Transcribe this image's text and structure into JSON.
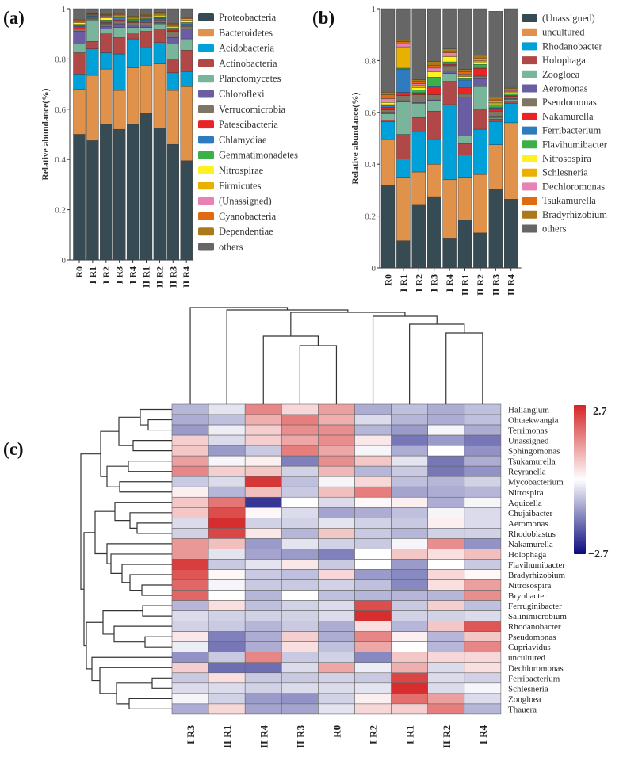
{
  "chart_data": [
    {
      "panel": "(a)",
      "type": "bar",
      "stacked": true,
      "ylabel": "Relative abundance(%)",
      "ylim": [
        0,
        1
      ],
      "yticks": [
        "0",
        "0.2",
        "0.4",
        "0.6",
        "0.8",
        "1"
      ],
      "categories": [
        "R0",
        "I R1",
        "I R2",
        "I R3",
        "I R4",
        "II R1",
        "II R2",
        "II R3",
        "II R4"
      ],
      "legend_position": "right",
      "series": [
        {
          "name": "Proteobacteria",
          "color": "#364b53",
          "values": [
            0.5,
            0.475,
            0.54,
            0.52,
            0.54,
            0.585,
            0.525,
            0.46,
            0.395
          ]
        },
        {
          "name": "Bacteroidetes",
          "color": "#e0914a",
          "values": [
            0.18,
            0.26,
            0.22,
            0.155,
            0.225,
            0.19,
            0.255,
            0.215,
            0.295
          ]
        },
        {
          "name": "Acidobacteria",
          "color": "#00a0d8",
          "values": [
            0.06,
            0.105,
            0.065,
            0.145,
            0.115,
            0.07,
            0.085,
            0.07,
            0.06
          ]
        },
        {
          "name": "Actinobacteria",
          "color": "#b04848",
          "values": [
            0.085,
            0.03,
            0.075,
            0.065,
            0.02,
            0.065,
            0.055,
            0.055,
            0.085
          ]
        },
        {
          "name": "Planctomycetes",
          "color": "#78b59a",
          "values": [
            0.035,
            0.085,
            0.02,
            0.04,
            0.025,
            0.015,
            0.02,
            0.06,
            0.045
          ]
        },
        {
          "name": "Chloroflexi",
          "color": "#6a5da3",
          "values": [
            0.05,
            0.005,
            0.01,
            0.015,
            0.01,
            0.01,
            0.005,
            0.025,
            0.04
          ]
        },
        {
          "name": "Verrucomicrobia",
          "color": "#7e7565",
          "values": [
            0.01,
            0.005,
            0.01,
            0.01,
            0.01,
            0.01,
            0.01,
            0.025,
            0.01
          ]
        },
        {
          "name": "Patescibacteria",
          "color": "#e82424",
          "values": [
            0.008,
            0.003,
            0.005,
            0.005,
            0.004,
            0.008,
            0.005,
            0.005,
            0.005
          ]
        },
        {
          "name": "Chlamydiae",
          "color": "#2f7bbf",
          "values": [
            0.004,
            0.003,
            0.005,
            0.008,
            0.004,
            0.005,
            0.004,
            0.004,
            0.005
          ]
        },
        {
          "name": "Gemmatimonadetes",
          "color": "#3bb04a",
          "values": [
            0.006,
            0.002,
            0.005,
            0.004,
            0.005,
            0.003,
            0.004,
            0.005,
            0.005
          ]
        },
        {
          "name": "Nitrospirae",
          "color": "#fff022",
          "values": [
            0.006,
            0.002,
            0.008,
            0.004,
            0.003,
            0.003,
            0.004,
            0.004,
            0.006
          ]
        },
        {
          "name": "Firmicutes",
          "color": "#e8b000",
          "values": [
            0.004,
            0.002,
            0.006,
            0.003,
            0.003,
            0.003,
            0.005,
            0.004,
            0.004
          ]
        },
        {
          "name": "(Unassigned)",
          "color": "#e882b4",
          "values": [
            0.004,
            0.002,
            0.003,
            0.002,
            0.002,
            0.003,
            0.003,
            0.003,
            0.005
          ]
        },
        {
          "name": "Cyanobacteria",
          "color": "#e06a10",
          "values": [
            0.003,
            0.002,
            0.003,
            0.003,
            0.002,
            0.003,
            0.003,
            0.004,
            0.003
          ]
        },
        {
          "name": "Dependentiae",
          "color": "#a87a1a",
          "values": [
            0.003,
            0.002,
            0.003,
            0.003,
            0.003,
            0.004,
            0.003,
            0.003,
            0.004
          ]
        },
        {
          "name": "others",
          "color": "#666666",
          "values": [
            0.042,
            0.017,
            0.022,
            0.018,
            0.029,
            0.023,
            0.014,
            0.058,
            0.033
          ]
        }
      ]
    },
    {
      "panel": "(b)",
      "type": "bar",
      "stacked": true,
      "ylabel": "Relative abundance(%)",
      "ylim": [
        0,
        1
      ],
      "yticks": [
        "0",
        "0.2",
        "0.4",
        "0.6",
        "0.8",
        "1"
      ],
      "categories": [
        "R0",
        "I R1",
        "I R2",
        "I R3",
        "I R4",
        "II R1",
        "II R2",
        "II R3",
        "II R4"
      ],
      "legend_position": "right",
      "series": [
        {
          "name": "(Unassigned)",
          "color": "#364b53",
          "values": [
            0.32,
            0.105,
            0.245,
            0.275,
            0.115,
            0.185,
            0.135,
            0.305,
            0.265
          ]
        },
        {
          "name": "uncultured",
          "color": "#e0914a",
          "values": [
            0.175,
            0.245,
            0.125,
            0.125,
            0.225,
            0.165,
            0.225,
            0.17,
            0.295
          ]
        },
        {
          "name": "Rhodanobacter",
          "color": "#00a0d8",
          "values": [
            0.07,
            0.07,
            0.155,
            0.095,
            0.29,
            0.085,
            0.175,
            0.09,
            0.075
          ]
        },
        {
          "name": "Holophaga",
          "color": "#b04848",
          "values": [
            0.005,
            0.095,
            0.055,
            0.11,
            0.09,
            0.045,
            0.075,
            0.01,
            0.01
          ]
        },
        {
          "name": "Zoogloea",
          "color": "#78b59a",
          "values": [
            0.025,
            0.125,
            0.055,
            0.04,
            0.03,
            0.03,
            0.09,
            0.005,
            0.005
          ]
        },
        {
          "name": "Aeromonas",
          "color": "#6a5da3",
          "values": [
            0.005,
            0.005,
            0.003,
            0.003,
            0.01,
            0.15,
            0.03,
            0.005,
            0.003
          ]
        },
        {
          "name": "Pseudomonas",
          "color": "#7e7565",
          "values": [
            0.01,
            0.02,
            0.03,
            0.02,
            0.02,
            0.01,
            0.01,
            0.02,
            0.005
          ]
        },
        {
          "name": "Nakamurella",
          "color": "#e82424",
          "values": [
            0.01,
            0.012,
            0.005,
            0.03,
            0.005,
            0.025,
            0.03,
            0.01,
            0.005
          ]
        },
        {
          "name": "Ferribacterium",
          "color": "#2f7bbf",
          "values": [
            0.005,
            0.09,
            0.003,
            0.003,
            0.005,
            0.03,
            0.005,
            0.003,
            0.003
          ]
        },
        {
          "name": "Flavihumibacter",
          "color": "#3bb04a",
          "values": [
            0.005,
            0.003,
            0.01,
            0.035,
            0.005,
            0.005,
            0.01,
            0.01,
            0.005
          ]
        },
        {
          "name": "Nitrosospira",
          "color": "#fff022",
          "values": [
            0.008,
            0.003,
            0.01,
            0.02,
            0.02,
            0.008,
            0.01,
            0.005,
            0.005
          ]
        },
        {
          "name": "Schlesneria",
          "color": "#e8b000",
          "values": [
            0.005,
            0.08,
            0.01,
            0.005,
            0.005,
            0.005,
            0.005,
            0.005,
            0.005
          ]
        },
        {
          "name": "Dechloromonas",
          "color": "#e882b4",
          "values": [
            0.01,
            0.012,
            0.005,
            0.01,
            0.01,
            0.005,
            0.005,
            0.005,
            0.003
          ]
        },
        {
          "name": "Tsukamurella",
          "color": "#e06a10",
          "values": [
            0.015,
            0.008,
            0.01,
            0.01,
            0.005,
            0.008,
            0.005,
            0.005,
            0.008
          ]
        },
        {
          "name": "Bradyrhizobium",
          "color": "#a87a1a",
          "values": [
            0.01,
            0.005,
            0.005,
            0.015,
            0.01,
            0.01,
            0.01,
            0.01,
            0.005
          ]
        },
        {
          "name": "others",
          "color": "#666666",
          "values": [
            0.322,
            0.122,
            0.274,
            0.204,
            0.155,
            0.234,
            0.18,
            0.332,
            0.303
          ]
        }
      ]
    },
    {
      "panel": "(c)",
      "type": "heatmap",
      "columns": [
        "I R3",
        "II R1",
        "II R4",
        "II R3",
        "R0",
        "I R2",
        "I R1",
        "II R2",
        "I R4"
      ],
      "rows": [
        "Haliangium",
        "Ohtaekwangia",
        "Terrimonas",
        "Unassigned",
        "Sphingomonas",
        "Tsukamurella",
        "Reyranella",
        "Mycobacterium",
        "Nitrospira",
        "Aquicella",
        "Chujaibacter",
        "Aeromonas",
        "Rhodoblastus",
        "Nakamurella",
        "Holophaga",
        "Flavihumibacter",
        "Bradyrhizobium",
        "Nitrosospira",
        "Bryobacter",
        "Ferruginibacter",
        "Salinimicrobium",
        "Rhodanobacter",
        "Pseudomonas",
        "Cupriavidus",
        "uncultured",
        "Dechloromonas",
        "Ferribacterium",
        "Schlesneria",
        "Zoogloea",
        "Thauera"
      ],
      "values": [
        [
          -0.8,
          -0.3,
          1.5,
          0.5,
          1.2,
          -0.9,
          -0.7,
          -0.9,
          -0.7
        ],
        [
          -0.9,
          -0.7,
          1.0,
          1.6,
          1.0,
          -0.4,
          -0.8,
          -0.9,
          -0.7
        ],
        [
          -1.1,
          -0.2,
          0.6,
          1.4,
          1.4,
          -0.8,
          -1.1,
          -0.1,
          -0.9
        ],
        [
          0.6,
          -0.4,
          0.6,
          1.1,
          1.4,
          0.3,
          -1.5,
          -1.1,
          -1.5
        ],
        [
          0.7,
          -1.1,
          -0.6,
          1.6,
          1.1,
          -0.1,
          -0.9,
          0.0,
          -1.2
        ],
        [
          1.2,
          -0.1,
          0.2,
          -1.4,
          1.4,
          0.7,
          -0.3,
          -1.5,
          -0.9
        ],
        [
          1.5,
          0.6,
          0.7,
          -0.5,
          0.9,
          -0.8,
          -0.6,
          -1.5,
          -1.2
        ],
        [
          -0.6,
          -0.4,
          2.5,
          -0.7,
          -0.1,
          0.5,
          -0.7,
          -0.8,
          -0.5
        ],
        [
          0.2,
          -0.8,
          0.8,
          -0.6,
          0.8,
          1.6,
          -1.0,
          -0.9,
          -0.8
        ],
        [
          0.7,
          1.7,
          -2.2,
          0.0,
          -0.4,
          0.1,
          0.2,
          -0.9,
          -0.1
        ],
        [
          0.7,
          2.2,
          0.1,
          -0.4,
          -1.0,
          -0.9,
          -0.7,
          -0.1,
          -0.4
        ],
        [
          -0.4,
          2.6,
          -0.5,
          -0.5,
          -0.3,
          -0.5,
          -0.6,
          0.2,
          -0.4
        ],
        [
          -0.5,
          2.3,
          0.3,
          -0.8,
          0.7,
          -0.6,
          -0.8,
          -0.5,
          -0.5
        ],
        [
          1.3,
          0.8,
          -1.1,
          -0.3,
          -0.5,
          -0.6,
          -0.1,
          1.4,
          -1.2
        ],
        [
          1.3,
          -0.3,
          -1.0,
          -1.1,
          -1.4,
          0.0,
          0.7,
          0.4,
          0.8
        ],
        [
          2.4,
          -0.6,
          -0.3,
          0.3,
          -0.6,
          0.0,
          -1.1,
          0.0,
          -0.6
        ],
        [
          2.1,
          0.1,
          -0.6,
          -0.7,
          0.5,
          -1.1,
          -1.3,
          0.5,
          0.1
        ],
        [
          1.9,
          -0.1,
          -0.6,
          -0.6,
          -0.5,
          -0.7,
          -1.3,
          0.4,
          1.2
        ],
        [
          1.9,
          0.0,
          -0.8,
          0.0,
          -0.7,
          -0.8,
          -0.8,
          -0.8,
          1.4
        ],
        [
          -0.8,
          0.4,
          -0.7,
          -0.5,
          -0.4,
          2.2,
          -0.6,
          0.6,
          -0.7
        ],
        [
          -0.4,
          -0.5,
          -0.5,
          -0.5,
          -0.4,
          2.6,
          -0.5,
          -0.5,
          -0.4
        ],
        [
          -0.5,
          -0.6,
          -0.8,
          -0.6,
          -0.9,
          0.4,
          -0.8,
          0.7,
          2.1
        ],
        [
          0.3,
          -1.4,
          -0.9,
          0.6,
          -0.9,
          1.5,
          0.2,
          -0.8,
          0.7
        ],
        [
          -0.2,
          -1.5,
          -0.9,
          0.4,
          -0.7,
          1.1,
          0.0,
          -0.8,
          1.5
        ],
        [
          -1.2,
          -0.6,
          1.5,
          -0.6,
          -0.5,
          -1.3,
          0.7,
          0.5,
          0.5
        ],
        [
          0.6,
          -1.6,
          -1.6,
          -0.4,
          1.1,
          -0.2,
          1.0,
          -0.4,
          0.4
        ],
        [
          -0.6,
          0.4,
          -0.6,
          -0.6,
          -0.5,
          -0.6,
          2.3,
          -0.4,
          -0.5
        ],
        [
          -0.4,
          -0.4,
          -0.5,
          -0.4,
          -0.4,
          -0.3,
          2.6,
          -0.4,
          -0.1
        ],
        [
          -0.1,
          -0.5,
          -1.1,
          -1.2,
          -0.5,
          0.2,
          1.8,
          1.2,
          -0.4
        ],
        [
          -0.9,
          0.5,
          -1.0,
          -1.0,
          -0.3,
          0.5,
          0.6,
          1.6,
          -0.8
        ]
      ],
      "color_scale": {
        "min": -2.7,
        "max": 2.7,
        "min_label": "−2.7",
        "max_label": "2.7",
        "low_color": "#0a0a7e",
        "mid_color": "#ffffff",
        "high_color": "#d42626"
      },
      "dendrogram": {
        "rows": true,
        "columns": true
      }
    }
  ]
}
